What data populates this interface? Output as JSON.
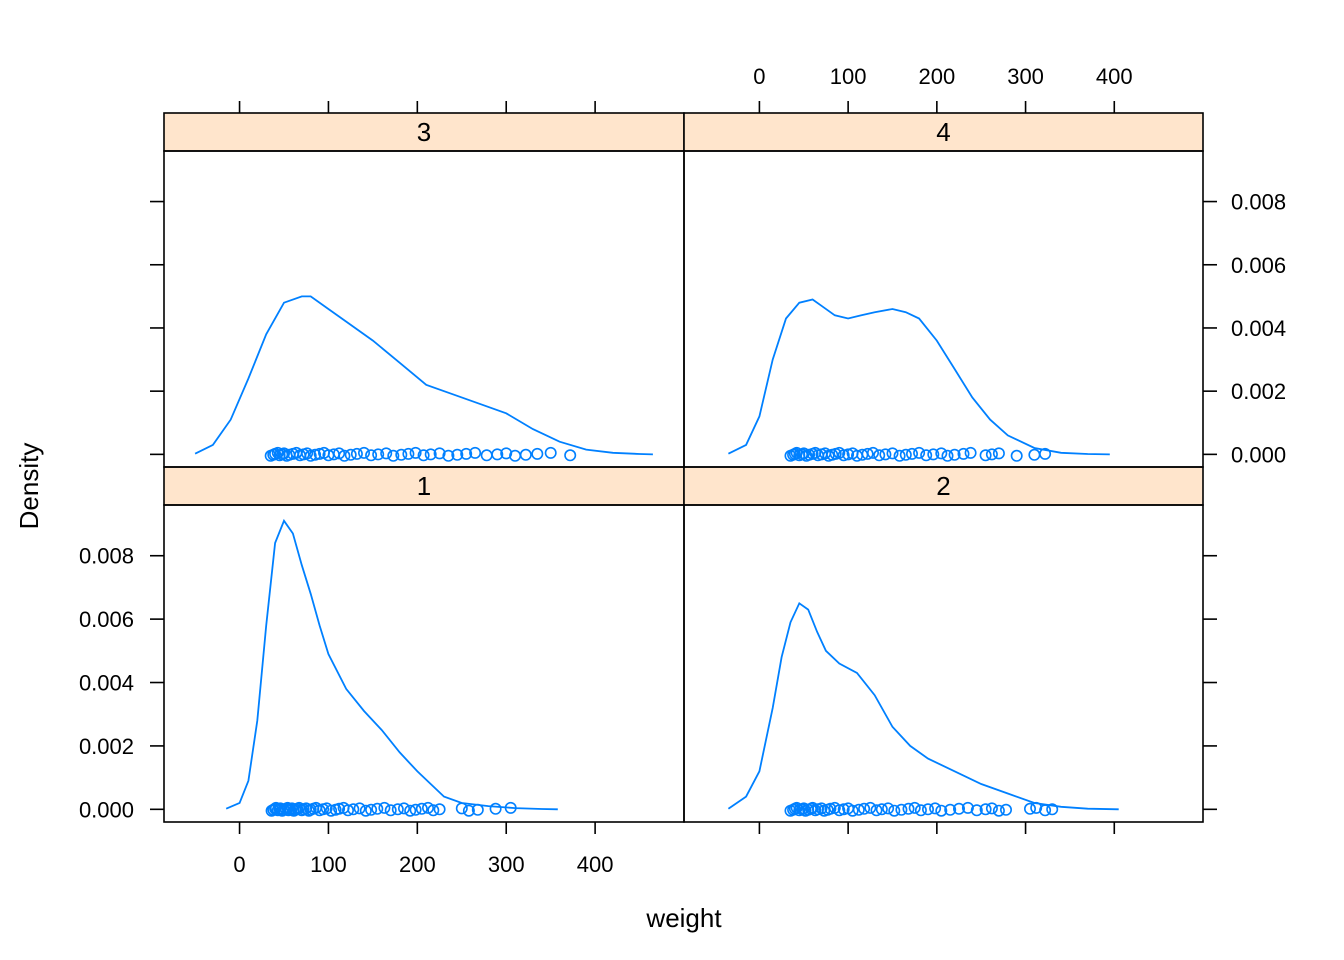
{
  "chart_data": {
    "type": "density",
    "xlabel": "weight",
    "ylabel": "Density",
    "xlim": [
      -85,
      500
    ],
    "ylim": [
      -0.0004,
      0.0096
    ],
    "x_ticks": [
      "0",
      "100",
      "200",
      "300",
      "400"
    ],
    "x_tick_values": [
      0,
      100,
      200,
      300,
      400
    ],
    "y_ticks": [
      "0.000",
      "0.002",
      "0.004",
      "0.006",
      "0.008"
    ],
    "y_tick_values": [
      0,
      0.002,
      0.004,
      0.006,
      0.008
    ],
    "grid": false,
    "line_color": "#0080ff",
    "strip_color": "#ffe5cc",
    "layout": "2 x 2 lattice panels",
    "panels": [
      {
        "label": "1",
        "position": "bottom-left",
        "density": {
          "x": [
            -15,
            0,
            10,
            20,
            30,
            40,
            50,
            60,
            70,
            80,
            90,
            100,
            120,
            140,
            160,
            180,
            200,
            215,
            230,
            250,
            280,
            310,
            340,
            358
          ],
          "y": [
            2e-05,
            0.0002,
            0.0009,
            0.0028,
            0.0058,
            0.0084,
            0.0091,
            0.0087,
            0.0077,
            0.0068,
            0.0058,
            0.0049,
            0.0038,
            0.0031,
            0.0025,
            0.0018,
            0.0012,
            0.0008,
            0.0004,
            0.0002,
            0.0001,
            4e-05,
            1e-05,
            0.0
          ]
        },
        "points": [
          36,
          38,
          40,
          41,
          43,
          45,
          46,
          48,
          50,
          52,
          54,
          55,
          57,
          59,
          61,
          63,
          65,
          67,
          70,
          72,
          75,
          78,
          80,
          83,
          86,
          90,
          94,
          98,
          103,
          108,
          112,
          117,
          122,
          128,
          135,
          142,
          148,
          155,
          163,
          170,
          178,
          185,
          192,
          198,
          205,
          212,
          218,
          225,
          250,
          258,
          268,
          288,
          305
        ]
      },
      {
        "label": "2",
        "position": "bottom-right",
        "density": {
          "x": [
            -35,
            -15,
            0,
            15,
            25,
            35,
            45,
            55,
            65,
            75,
            90,
            110,
            130,
            150,
            170,
            190,
            220,
            250,
            280,
            310,
            340,
            370,
            405
          ],
          "y": [
            2e-05,
            0.0004,
            0.0012,
            0.0032,
            0.0048,
            0.0059,
            0.0065,
            0.0063,
            0.0056,
            0.005,
            0.0046,
            0.0043,
            0.0036,
            0.0026,
            0.002,
            0.0016,
            0.0012,
            0.0008,
            0.0005,
            0.0002,
            8e-05,
            2e-05,
            0.0
          ]
        },
        "points": [
          35,
          38,
          40,
          42,
          45,
          48,
          50,
          52,
          55,
          58,
          60,
          63,
          66,
          70,
          73,
          77,
          80,
          85,
          90,
          95,
          100,
          105,
          112,
          118,
          125,
          132,
          138,
          145,
          152,
          160,
          168,
          175,
          182,
          190,
          198,
          205,
          215,
          225,
          235,
          245,
          255,
          262,
          270,
          278,
          305,
          312,
          322,
          330
        ]
      },
      {
        "label": "3",
        "position": "top-left",
        "density": {
          "x": [
            -50,
            -30,
            -10,
            10,
            30,
            50,
            70,
            80,
            100,
            120,
            150,
            180,
            210,
            240,
            270,
            300,
            330,
            360,
            390,
            420,
            450,
            465
          ],
          "y": [
            2e-05,
            0.0003,
            0.0011,
            0.0024,
            0.0038,
            0.0048,
            0.005,
            0.005,
            0.0046,
            0.0042,
            0.0036,
            0.0029,
            0.0022,
            0.0019,
            0.0016,
            0.0013,
            0.0008,
            0.0004,
            0.00015,
            5e-05,
            1e-05,
            0.0
          ]
        },
        "points": [
          35,
          38,
          40,
          43,
          45,
          48,
          50,
          53,
          56,
          60,
          64,
          68,
          72,
          76,
          80,
          85,
          90,
          95,
          100,
          106,
          112,
          118,
          125,
          132,
          140,
          148,
          156,
          165,
          173,
          182,
          190,
          198,
          207,
          215,
          225,
          235,
          245,
          255,
          265,
          278,
          290,
          300,
          310,
          322,
          335,
          350,
          372
        ]
      },
      {
        "label": "4",
        "position": "top-right",
        "density": {
          "x": [
            -35,
            -15,
            0,
            15,
            30,
            45,
            60,
            70,
            85,
            100,
            115,
            130,
            150,
            165,
            180,
            200,
            220,
            240,
            260,
            280,
            310,
            340,
            370,
            395
          ],
          "y": [
            2e-05,
            0.0003,
            0.0012,
            0.003,
            0.0043,
            0.0048,
            0.0049,
            0.0047,
            0.0044,
            0.0043,
            0.0044,
            0.0045,
            0.0046,
            0.0045,
            0.0043,
            0.0036,
            0.0027,
            0.0018,
            0.0011,
            0.0006,
            0.0002,
            5e-05,
            1e-05,
            0.0
          ]
        },
        "points": [
          35,
          38,
          40,
          42,
          45,
          48,
          50,
          53,
          56,
          60,
          63,
          66,
          70,
          74,
          78,
          82,
          86,
          90,
          95,
          100,
          105,
          110,
          116,
          122,
          128,
          135,
          142,
          150,
          158,
          165,
          172,
          180,
          188,
          196,
          205,
          212,
          220,
          230,
          238,
          255,
          262,
          270,
          290,
          310,
          322
        ]
      }
    ]
  }
}
